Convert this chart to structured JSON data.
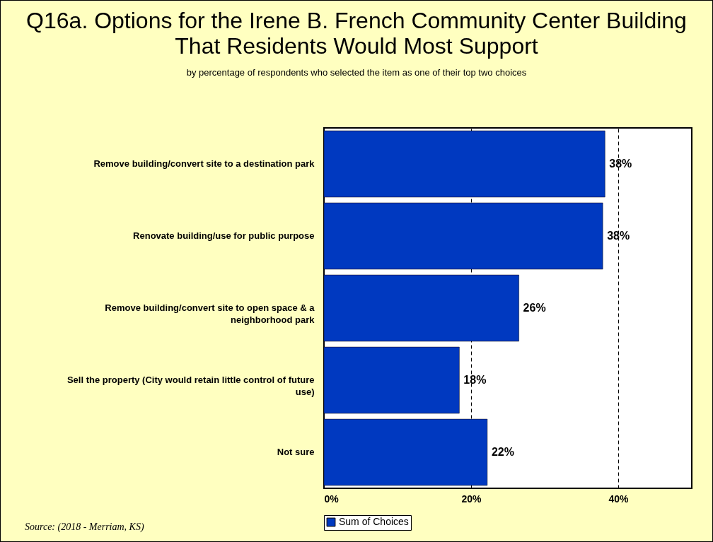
{
  "chart_data": {
    "type": "bar",
    "orientation": "horizontal",
    "title": "Q16a. Options for the Irene B. French Community Center Building That Residents Would Most Support",
    "subtitle": "by percentage of respondents who selected the item as one of their top two choices",
    "categories": [
      "Remove building/convert site to a destination park",
      "Renovate building/use for public purpose",
      "Remove building/convert site to open space & a neighborhood park",
      "Sell the property (City would retain little control of future use)",
      "Not sure"
    ],
    "series": [
      {
        "name": "Sum of Choices",
        "color": "#0039c0",
        "values": [
          38.2,
          37.9,
          26.5,
          18.4,
          22.2
        ],
        "value_labels": [
          "38%",
          "38%",
          "26%",
          "18%",
          "22%"
        ]
      }
    ],
    "xlim": [
      0,
      50
    ],
    "xticks": [
      {
        "value": 0,
        "label": "0%"
      },
      {
        "value": 20,
        "label": "20%"
      },
      {
        "value": 40,
        "label": "40%"
      }
    ],
    "grid": "x",
    "line_style": "dashed",
    "legend": "bottom",
    "annotations": [
      "Source: (2018 - Merriam, KS)"
    ]
  }
}
